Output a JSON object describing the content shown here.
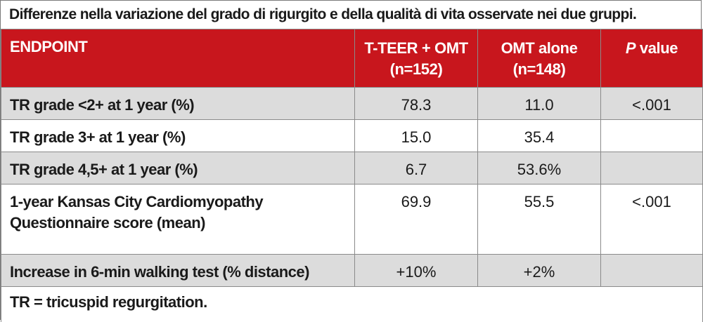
{
  "caption": "Differenze nella variazione del grado di rigurgito e della qualità di vita osservate nei due gruppi.",
  "header": {
    "col1": "ENDPOINT",
    "col2_line1": "T-TEER + OMT",
    "col2_line2": "(n=152)",
    "col3_line1": "OMT alone",
    "col3_line2": "(n=148)",
    "col4_p": "P",
    "col4_rest": " value"
  },
  "rows": [
    {
      "endpoint": "TR grade <2+ at 1 year (%)",
      "tteer": "78.3",
      "omt": "11.0",
      "p": "<.001"
    },
    {
      "endpoint": "TR grade 3+ at 1 year (%)",
      "tteer": "15.0",
      "omt": "35.4",
      "p": ""
    },
    {
      "endpoint": "TR grade 4,5+ at 1 year (%)",
      "tteer": "6.7",
      "omt": "53.6%",
      "p": ""
    },
    {
      "endpoint_line1": "1-year Kansas City Cardiomyopathy",
      "endpoint_line2": "Questionnaire score (mean)",
      "tteer": "69.9",
      "omt": "55.5",
      "p": "<.001"
    },
    {
      "endpoint": "Increase in 6-min walking test (% distance)",
      "tteer": "+10%",
      "omt": "+2%",
      "p": ""
    }
  ],
  "footnote": "TR = tricuspid regurgitation.",
  "colors": {
    "header_bg": "#c8161d",
    "header_text": "#ffffff",
    "shaded_row": "#dcdcdc",
    "border": "#8a8a8a"
  }
}
